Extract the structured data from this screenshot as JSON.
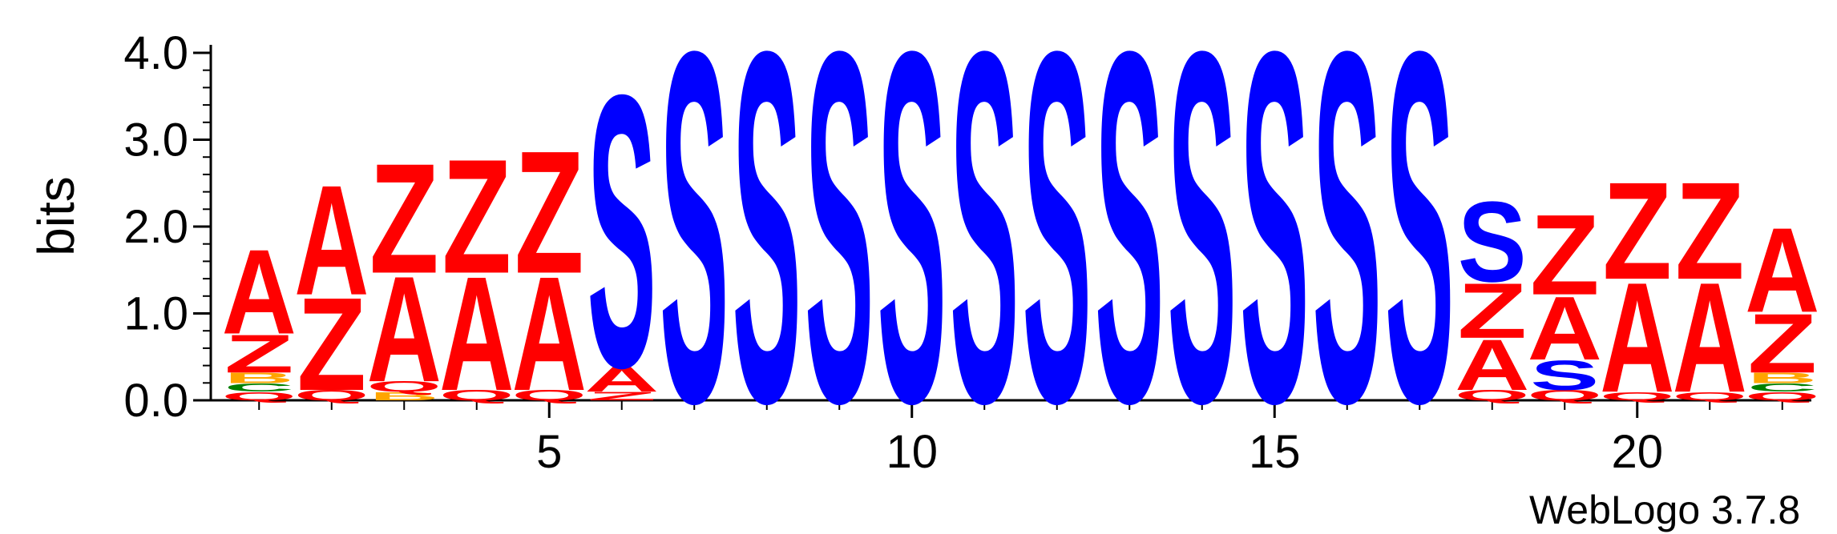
{
  "chart_data": {
    "type": "sequence-logo",
    "ylabel": "bits",
    "ylim": [
      0,
      4.0
    ],
    "yticks": [
      "0.0",
      "1.0",
      "2.0",
      "3.0",
      "4.0"
    ],
    "xticks": [
      5,
      10,
      15,
      20
    ],
    "positions": [
      {
        "pos": 1,
        "stack": [
          [
            "Q",
            0.1,
            "red"
          ],
          [
            "C",
            0.1,
            "green"
          ],
          [
            "B",
            0.12,
            "orange"
          ],
          [
            "Z",
            0.45,
            "red"
          ],
          [
            "A",
            1.0,
            "red"
          ]
        ]
      },
      {
        "pos": 2,
        "stack": [
          [
            "Q",
            0.12,
            "red"
          ],
          [
            "Z",
            1.1,
            "red"
          ],
          [
            "A",
            1.3,
            "red"
          ]
        ]
      },
      {
        "pos": 3,
        "stack": [
          [
            "B",
            0.1,
            "orange"
          ],
          [
            "Q",
            0.12,
            "red"
          ],
          [
            "A",
            1.25,
            "red"
          ],
          [
            "Z",
            1.3,
            "red"
          ]
        ]
      },
      {
        "pos": 4,
        "stack": [
          [
            "Q",
            0.12,
            "red"
          ],
          [
            "A",
            1.35,
            "red"
          ],
          [
            "Z",
            1.35,
            "red"
          ]
        ]
      },
      {
        "pos": 5,
        "stack": [
          [
            "Q",
            0.12,
            "red"
          ],
          [
            "A",
            1.35,
            "red"
          ],
          [
            "Z",
            1.45,
            "red"
          ]
        ]
      },
      {
        "pos": 6,
        "stack": [
          [
            "Z",
            0.1,
            "red"
          ],
          [
            "A",
            0.3,
            "red"
          ],
          [
            "S",
            3.22,
            "blue"
          ]
        ]
      },
      {
        "pos": 7,
        "stack": [
          [
            "S",
            4.15,
            "blue"
          ]
        ]
      },
      {
        "pos": 8,
        "stack": [
          [
            "S",
            4.15,
            "blue"
          ]
        ]
      },
      {
        "pos": 9,
        "stack": [
          [
            "S",
            4.15,
            "blue"
          ]
        ]
      },
      {
        "pos": 10,
        "stack": [
          [
            "S",
            4.15,
            "blue"
          ]
        ]
      },
      {
        "pos": 11,
        "stack": [
          [
            "S",
            4.15,
            "blue"
          ]
        ]
      },
      {
        "pos": 12,
        "stack": [
          [
            "S",
            4.15,
            "blue"
          ]
        ]
      },
      {
        "pos": 13,
        "stack": [
          [
            "S",
            4.15,
            "blue"
          ]
        ]
      },
      {
        "pos": 14,
        "stack": [
          [
            "S",
            4.15,
            "blue"
          ]
        ]
      },
      {
        "pos": 15,
        "stack": [
          [
            "S",
            4.15,
            "blue"
          ]
        ]
      },
      {
        "pos": 16,
        "stack": [
          [
            "S",
            4.15,
            "blue"
          ]
        ]
      },
      {
        "pos": 17,
        "stack": [
          [
            "S",
            4.15,
            "blue"
          ]
        ]
      },
      {
        "pos": 18,
        "stack": [
          [
            "Q",
            0.12,
            "red"
          ],
          [
            "A",
            0.6,
            "red"
          ],
          [
            "Z",
            0.65,
            "red"
          ],
          [
            "S",
            0.95,
            "blue"
          ]
        ]
      },
      {
        "pos": 19,
        "stack": [
          [
            "Q",
            0.12,
            "red"
          ],
          [
            "S",
            0.35,
            "blue"
          ],
          [
            "A",
            0.75,
            "red"
          ],
          [
            "Z",
            0.95,
            "red"
          ]
        ]
      },
      {
        "pos": 20,
        "stack": [
          [
            "Q",
            0.1,
            "red"
          ],
          [
            "A",
            1.3,
            "red"
          ],
          [
            "Z",
            1.15,
            "red"
          ]
        ]
      },
      {
        "pos": 21,
        "stack": [
          [
            "Q",
            0.1,
            "red"
          ],
          [
            "A",
            1.3,
            "red"
          ],
          [
            "Z",
            1.15,
            "red"
          ]
        ]
      },
      {
        "pos": 22,
        "stack": [
          [
            "Q",
            0.1,
            "red"
          ],
          [
            "C",
            0.1,
            "green"
          ],
          [
            "B",
            0.12,
            "orange"
          ],
          [
            "Z",
            0.7,
            "red"
          ],
          [
            "A",
            1.0,
            "red"
          ]
        ]
      }
    ],
    "colors": {
      "red": "#ff0000",
      "blue": "#0000ff",
      "green": "#008000",
      "orange": "#ffa500",
      "purple": "#800080"
    }
  },
  "footer": {
    "credit": "WebLogo 3.7.8"
  }
}
